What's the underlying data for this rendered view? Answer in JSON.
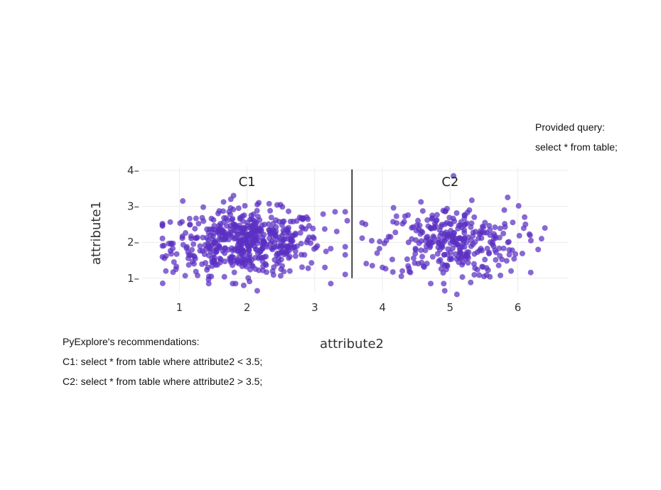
{
  "provided_query": {
    "label": "Provided query:",
    "text": "select * from table;"
  },
  "recommendations": {
    "title": "PyExplore's recommendations:",
    "c1": "C1: select * from table where attribute2 < 3.5;",
    "c2": "C2: select * from table where attribute2 > 3.5;"
  },
  "chart_data": {
    "type": "scatter",
    "xlabel": "attribute2",
    "ylabel": "attribute1",
    "xlim": [
      0.45,
      6.75
    ],
    "ylim": [
      0.6,
      4.1
    ],
    "xticks": [
      1,
      2,
      3,
      4,
      5,
      6
    ],
    "yticks": [
      1,
      2,
      3,
      4
    ],
    "grid": true,
    "split_line_x": 3.55,
    "marker_color": "#5a2fc2",
    "clusters": [
      {
        "label": "C1",
        "label_x": 2.0,
        "label_y": 3.7,
        "x_center": 2.0,
        "x_spread": 0.55,
        "x_min": 0.75,
        "x_max": 3.45,
        "y_center": 2.0,
        "y_spread": 0.45,
        "count": 520
      },
      {
        "label": "C2",
        "label_x": 5.0,
        "label_y": 3.7,
        "x_center": 5.0,
        "x_spread": 0.5,
        "x_min": 3.7,
        "x_max": 6.4,
        "y_center": 2.0,
        "y_spread": 0.5,
        "count": 300
      }
    ],
    "points": [
      [
        0.75,
        1.9
      ],
      [
        0.8,
        1.2
      ],
      [
        0.88,
        1.95
      ],
      [
        0.92,
        1.45
      ],
      [
        0.95,
        1.25
      ],
      [
        1.05,
        3.15
      ],
      [
        1.42,
        1.3
      ],
      [
        1.8,
        3.3
      ],
      [
        1.95,
        0.8
      ],
      [
        2.15,
        0.65
      ],
      [
        3.15,
        1.3
      ],
      [
        3.3,
        2.85
      ],
      [
        3.45,
        2.85
      ],
      [
        3.45,
        1.65
      ],
      [
        3.48,
        2.6
      ],
      [
        3.75,
        2.5
      ],
      [
        3.85,
        1.35
      ],
      [
        4.0,
        1.3
      ],
      [
        4.12,
        2.15
      ],
      [
        5.05,
        3.85
      ],
      [
        5.1,
        0.55
      ],
      [
        5.85,
        3.25
      ],
      [
        6.1,
        2.7
      ],
      [
        6.35,
        2.1
      ],
      [
        6.3,
        1.8
      ],
      [
        4.92,
        0.65
      ],
      [
        5.5,
        1.05
      ],
      [
        5.9,
        1.2
      ]
    ]
  }
}
